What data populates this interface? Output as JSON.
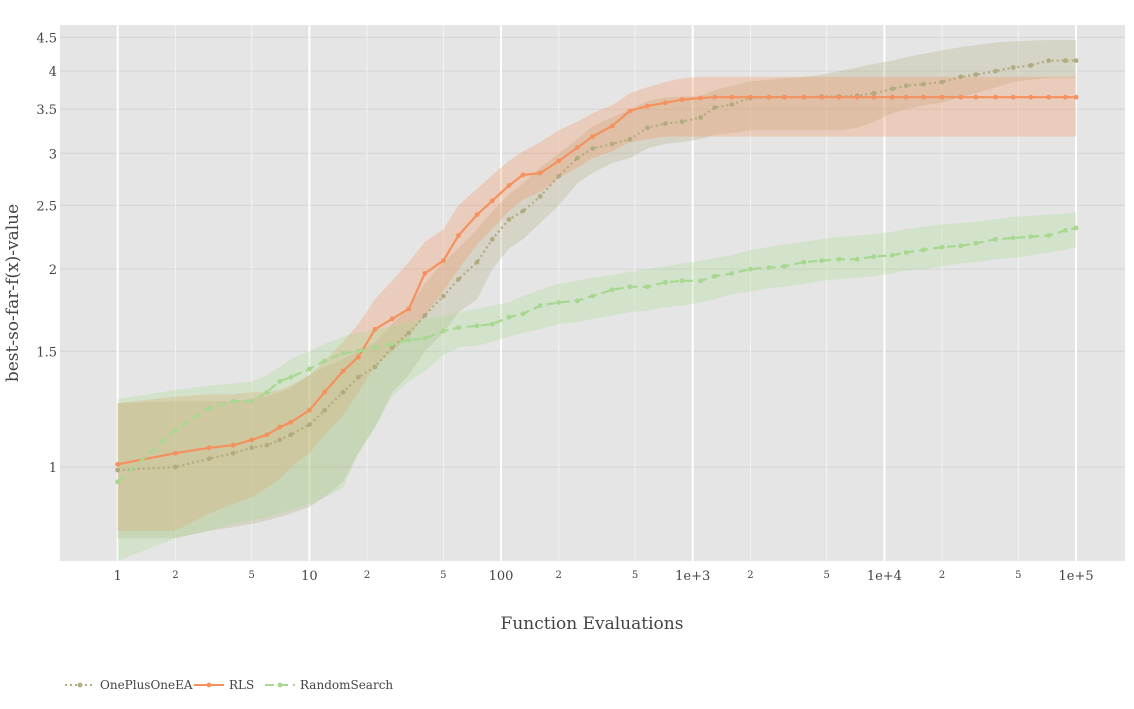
{
  "chart_data": {
    "type": "line",
    "xscale": "log",
    "yscale": "log",
    "xlabel": "Function Evaluations",
    "ylabel": "best-so-far-f(x)-value",
    "xlim": [
      0.5,
      180000
    ],
    "ylim": [
      0.72,
      4.7
    ],
    "y_ticks": [
      {
        "v": 1,
        "label": "1"
      },
      {
        "v": 1.5,
        "label": "1.5"
      },
      {
        "v": 2,
        "label": "2"
      },
      {
        "v": 2.5,
        "label": "2.5"
      },
      {
        "v": 3,
        "label": "3"
      },
      {
        "v": 3.5,
        "label": "3.5"
      },
      {
        "v": 4,
        "label": "4"
      },
      {
        "v": 4.5,
        "label": "4.5"
      }
    ],
    "x_major_ticks": [
      {
        "v": 1,
        "label": "1"
      },
      {
        "v": 10,
        "label": "10"
      },
      {
        "v": 100,
        "label": "100"
      },
      {
        "v": 1000,
        "label": "1e+3"
      },
      {
        "v": 10000,
        "label": "1e+4"
      },
      {
        "v": 100000,
        "label": "1e+5"
      }
    ],
    "x_minor_ticks": [
      {
        "v": 2,
        "label": "2"
      },
      {
        "v": 5,
        "label": "5"
      },
      {
        "v": 20,
        "label": "2"
      },
      {
        "v": 50,
        "label": "5"
      },
      {
        "v": 200,
        "label": "2"
      },
      {
        "v": 500,
        "label": "5"
      },
      {
        "v": 2000,
        "label": "2"
      },
      {
        "v": 5000,
        "label": "5"
      },
      {
        "v": 20000,
        "label": "2"
      },
      {
        "v": 50000,
        "label": "5"
      }
    ],
    "legend_position": "bottom-left",
    "x": [
      1,
      2,
      3,
      4,
      5,
      6,
      7,
      8,
      10,
      12,
      15,
      18,
      22,
      27,
      33,
      40,
      50,
      60,
      75,
      90,
      110,
      130,
      160,
      200,
      250,
      300,
      380,
      470,
      580,
      720,
      880,
      1100,
      1300,
      1600,
      2000,
      2500,
      3000,
      3800,
      4700,
      5800,
      7200,
      8800,
      11000,
      13000,
      16000,
      20000,
      25000,
      30000,
      38000,
      47000,
      58000,
      72000,
      88000,
      100000
    ],
    "series": [
      {
        "name": "OnePlusOneEA",
        "color": "#b3ab80",
        "dash": "2,3",
        "values": [
          0.99,
          1.0,
          1.03,
          1.05,
          1.07,
          1.08,
          1.1,
          1.12,
          1.16,
          1.22,
          1.3,
          1.37,
          1.42,
          1.52,
          1.6,
          1.7,
          1.82,
          1.93,
          2.05,
          2.22,
          2.38,
          2.45,
          2.58,
          2.77,
          2.95,
          3.05,
          3.1,
          3.15,
          3.28,
          3.33,
          3.35,
          3.4,
          3.52,
          3.56,
          3.64,
          3.65,
          3.65,
          3.65,
          3.66,
          3.66,
          3.67,
          3.7,
          3.76,
          3.8,
          3.82,
          3.85,
          3.92,
          3.95,
          4.0,
          4.05,
          4.08,
          4.15,
          4.15,
          4.15
        ],
        "lower": [
          0.78,
          0.78,
          0.8,
          0.81,
          0.82,
          0.83,
          0.84,
          0.85,
          0.87,
          0.9,
          0.95,
          1.05,
          1.15,
          1.3,
          1.38,
          1.5,
          1.6,
          1.72,
          1.8,
          2.0,
          2.15,
          2.22,
          2.35,
          2.5,
          2.7,
          2.8,
          2.9,
          2.95,
          3.05,
          3.1,
          3.12,
          3.15,
          3.2,
          3.22,
          3.25,
          3.25,
          3.25,
          3.25,
          3.25,
          3.25,
          3.28,
          3.35,
          3.45,
          3.5,
          3.55,
          3.58,
          3.65,
          3.7,
          3.78,
          3.85,
          3.88,
          3.9,
          3.9,
          3.9
        ],
        "upper": [
          1.25,
          1.26,
          1.26,
          1.26,
          1.27,
          1.28,
          1.3,
          1.32,
          1.38,
          1.42,
          1.46,
          1.5,
          1.55,
          1.65,
          1.75,
          1.9,
          2.05,
          2.15,
          2.3,
          2.45,
          2.6,
          2.7,
          2.85,
          3.0,
          3.15,
          3.3,
          3.4,
          3.5,
          3.6,
          3.65,
          3.66,
          3.67,
          3.74,
          3.8,
          3.86,
          3.88,
          3.9,
          3.92,
          3.95,
          4.0,
          4.05,
          4.1,
          4.15,
          4.2,
          4.25,
          4.3,
          4.35,
          4.38,
          4.42,
          4.44,
          4.45,
          4.46,
          4.46,
          4.46
        ]
      },
      {
        "name": "RLS",
        "color": "#f4915e",
        "dash": "",
        "values": [
          1.01,
          1.05,
          1.07,
          1.08,
          1.1,
          1.12,
          1.15,
          1.17,
          1.22,
          1.3,
          1.4,
          1.47,
          1.62,
          1.68,
          1.74,
          1.97,
          2.06,
          2.25,
          2.42,
          2.54,
          2.68,
          2.78,
          2.8,
          2.92,
          3.06,
          3.18,
          3.3,
          3.48,
          3.54,
          3.58,
          3.62,
          3.64,
          3.65,
          3.65,
          3.65,
          3.65,
          3.65,
          3.65,
          3.65,
          3.65,
          3.65,
          3.65,
          3.65,
          3.65,
          3.65,
          3.65,
          3.65,
          3.65,
          3.65,
          3.65,
          3.65,
          3.65,
          3.65,
          3.65
        ],
        "lower": [
          0.8,
          0.8,
          0.85,
          0.88,
          0.9,
          0.93,
          0.96,
          1.0,
          1.05,
          1.12,
          1.2,
          1.3,
          1.42,
          1.5,
          1.58,
          1.7,
          1.85,
          2.0,
          2.18,
          2.3,
          2.45,
          2.55,
          2.62,
          2.75,
          2.85,
          2.95,
          3.02,
          3.12,
          3.15,
          3.18,
          3.18,
          3.18,
          3.18,
          3.18,
          3.18,
          3.18,
          3.18,
          3.18,
          3.18,
          3.18,
          3.18,
          3.18,
          3.18,
          3.18,
          3.18,
          3.18,
          3.18,
          3.18,
          3.18,
          3.18,
          3.18,
          3.18,
          3.18,
          3.18
        ],
        "upper": [
          1.25,
          1.28,
          1.29,
          1.29,
          1.3,
          1.3,
          1.31,
          1.33,
          1.38,
          1.45,
          1.55,
          1.65,
          1.8,
          1.92,
          2.05,
          2.2,
          2.3,
          2.5,
          2.65,
          2.78,
          2.92,
          3.02,
          3.12,
          3.25,
          3.35,
          3.45,
          3.55,
          3.7,
          3.78,
          3.85,
          3.9,
          3.92,
          3.92,
          3.92,
          3.92,
          3.92,
          3.92,
          3.92,
          3.92,
          3.92,
          3.92,
          3.92,
          3.92,
          3.92,
          3.92,
          3.92,
          3.92,
          3.92,
          3.92,
          3.92,
          3.92,
          3.92,
          3.92,
          3.92
        ]
      },
      {
        "name": "RandomSearch",
        "color": "#a6d98f",
        "dash": "9,5",
        "values": [
          0.95,
          1.14,
          1.23,
          1.26,
          1.26,
          1.3,
          1.35,
          1.37,
          1.41,
          1.45,
          1.49,
          1.5,
          1.52,
          1.54,
          1.56,
          1.57,
          1.61,
          1.63,
          1.64,
          1.65,
          1.69,
          1.71,
          1.76,
          1.78,
          1.79,
          1.82,
          1.86,
          1.88,
          1.88,
          1.91,
          1.92,
          1.92,
          1.95,
          1.97,
          2.0,
          2.01,
          2.02,
          2.05,
          2.06,
          2.07,
          2.07,
          2.09,
          2.1,
          2.12,
          2.14,
          2.16,
          2.17,
          2.19,
          2.22,
          2.23,
          2.24,
          2.25,
          2.29,
          2.31
        ],
        "lower": [
          0.72,
          0.78,
          0.8,
          0.82,
          0.83,
          0.84,
          0.85,
          0.86,
          0.88,
          0.9,
          0.93,
          1.05,
          1.15,
          1.28,
          1.35,
          1.4,
          1.48,
          1.52,
          1.53,
          1.55,
          1.58,
          1.6,
          1.62,
          1.65,
          1.66,
          1.68,
          1.7,
          1.72,
          1.73,
          1.75,
          1.76,
          1.78,
          1.8,
          1.83,
          1.85,
          1.87,
          1.88,
          1.9,
          1.92,
          1.93,
          1.94,
          1.95,
          1.97,
          1.99,
          2.0,
          2.02,
          2.04,
          2.05,
          2.07,
          2.08,
          2.1,
          2.12,
          2.14,
          2.16
        ],
        "upper": [
          1.27,
          1.31,
          1.33,
          1.34,
          1.35,
          1.38,
          1.42,
          1.46,
          1.5,
          1.54,
          1.58,
          1.6,
          1.62,
          1.64,
          1.66,
          1.68,
          1.7,
          1.72,
          1.74,
          1.76,
          1.78,
          1.82,
          1.86,
          1.9,
          1.92,
          1.94,
          1.96,
          1.98,
          2.0,
          2.02,
          2.04,
          2.06,
          2.08,
          2.1,
          2.14,
          2.16,
          2.18,
          2.2,
          2.22,
          2.24,
          2.25,
          2.26,
          2.28,
          2.3,
          2.32,
          2.34,
          2.35,
          2.36,
          2.38,
          2.4,
          2.41,
          2.42,
          2.43,
          2.44
        ]
      }
    ]
  }
}
